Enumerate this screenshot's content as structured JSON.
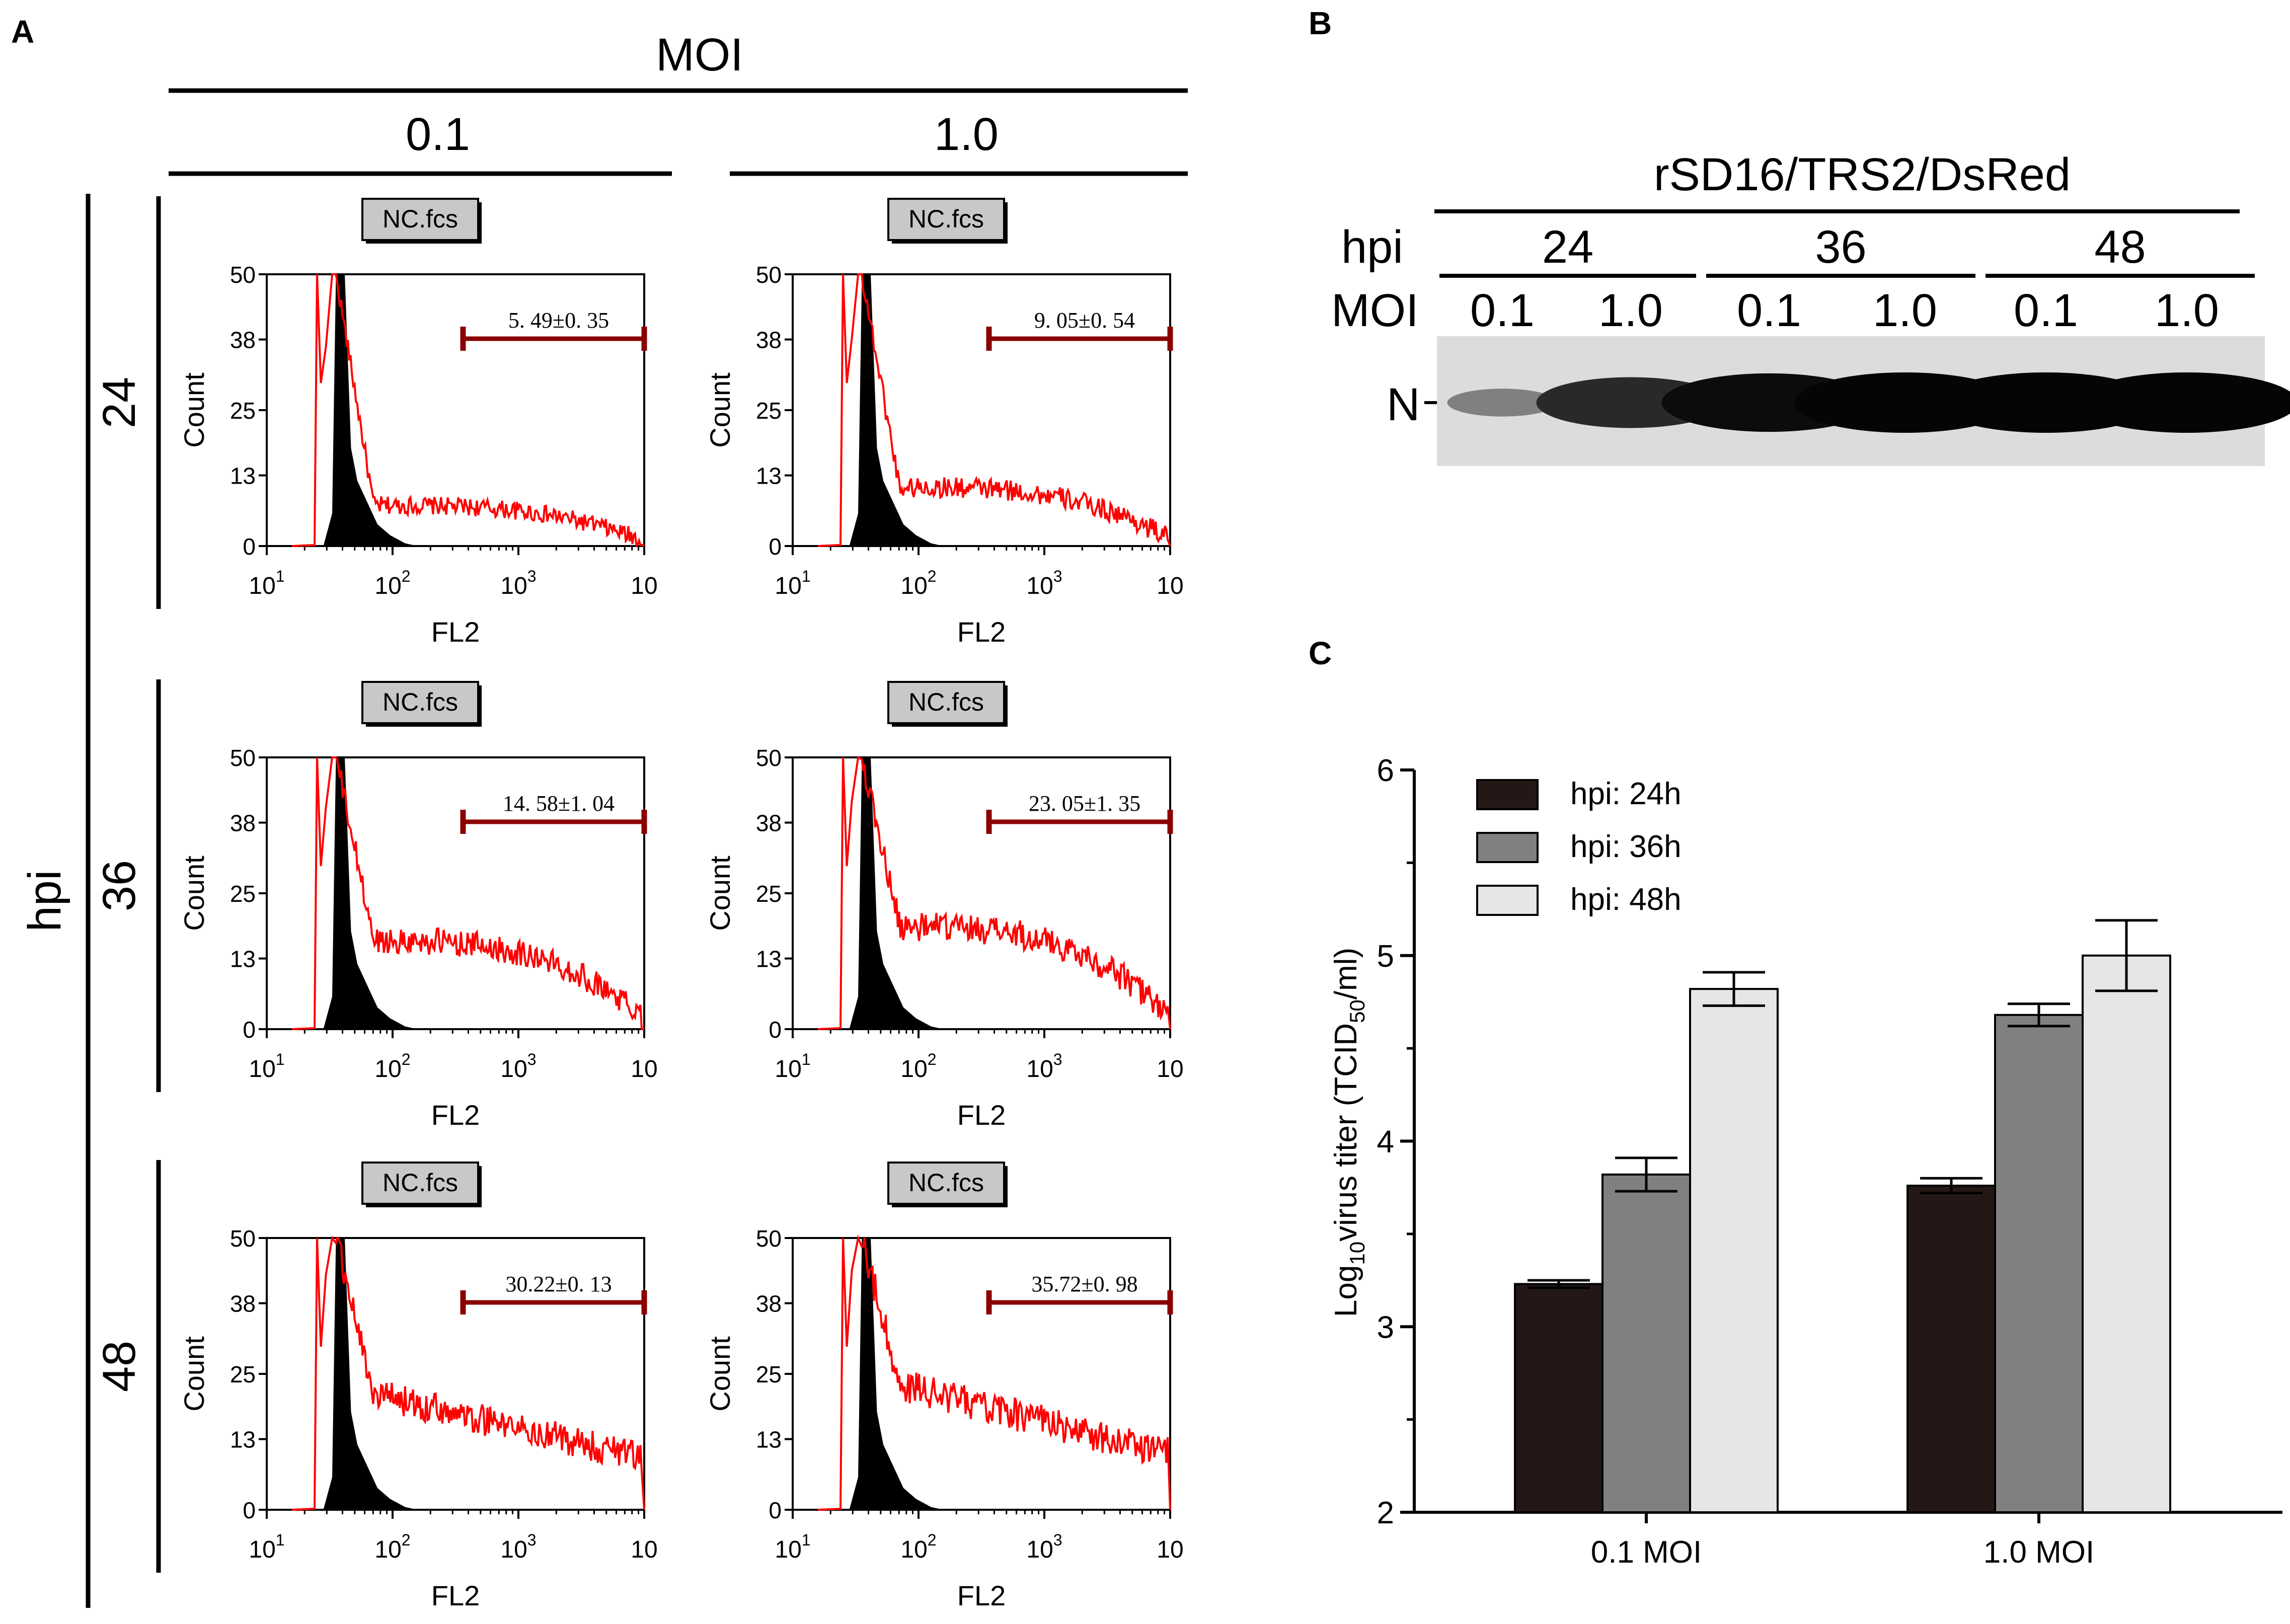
{
  "panel_labels": {
    "a": "A",
    "b": "B",
    "c": "C"
  },
  "flow": {
    "header": "MOI",
    "side_label": "hpi",
    "moi_columns": [
      "0.1",
      "1.0"
    ],
    "hpi_rows": [
      "24",
      "36",
      "48"
    ],
    "gate_tag": "NC.fcs",
    "x_axis_label": "FL2",
    "y_axis_label": "Count",
    "y_ticks": [
      "0",
      "13",
      "25",
      "38",
      "50"
    ],
    "x_ticks": [
      {
        "base": "10",
        "exp": "1"
      },
      {
        "base": "10",
        "exp": "2"
      },
      {
        "base": "10",
        "exp": "3"
      },
      {
        "base": "10",
        "exp": ""
      }
    ],
    "plots": [
      {
        "gate_text": "5. 49±0. 35",
        "spread": 0.26
      },
      {
        "gate_text": "9. 05±0. 54",
        "spread": 0.42
      },
      {
        "gate_text": "14. 58±1. 04",
        "spread": 0.68
      },
      {
        "gate_text": "23. 05±1. 35",
        "spread": 0.8
      },
      {
        "gate_text": "30.22±0. 13",
        "spread": 0.92
      },
      {
        "gate_text": "35.72±0. 98",
        "spread": 1.0
      }
    ],
    "colors": {
      "negative_control": "#000000",
      "sample": "#ff0000",
      "gate": "#8b0000"
    }
  },
  "blot": {
    "title": "rSD16/TRS2/DsRed",
    "hpi_label": "hpi",
    "moi_label": "MOI",
    "hpi_groups": [
      "24",
      "36",
      "48"
    ],
    "moi_lanes": [
      "0.1",
      "1.0",
      "0.1",
      "1.0",
      "0.1",
      "1.0"
    ],
    "band_label": "N",
    "band_intensity": [
      0.15,
      0.75,
      0.95,
      1.0,
      1.0,
      1.0
    ]
  },
  "chart_data": {
    "type": "bar",
    "title": "",
    "xlabel": "",
    "ylabel_parts": [
      "Log",
      "10",
      "virus titer (TCID",
      "50",
      "/ml)"
    ],
    "categories": [
      "0.1 MOI",
      "1.0 MOI"
    ],
    "series": [
      {
        "name": "hpi: 24h",
        "color": "#231815",
        "values": [
          3.23,
          3.76
        ],
        "errors": [
          0.02,
          0.04
        ]
      },
      {
        "name": "hpi: 36h",
        "color": "#808080",
        "values": [
          3.82,
          4.68
        ],
        "errors": [
          0.09,
          0.06
        ]
      },
      {
        "name": "hpi: 48h",
        "color": "#e6e6e6",
        "values": [
          4.82,
          5.0
        ],
        "errors": [
          0.09,
          0.19
        ]
      }
    ],
    "ylim": [
      2,
      6
    ],
    "yticks": [
      "2",
      "3",
      "4",
      "5",
      "6"
    ],
    "legend": "top-left",
    "grid": false
  }
}
